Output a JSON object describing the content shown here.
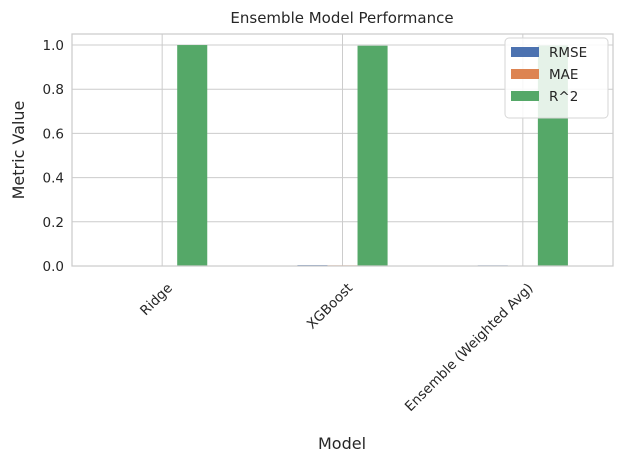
{
  "chart_data": {
    "type": "bar",
    "title": "Ensemble Model Performance",
    "xlabel": "Model",
    "ylabel": "Metric Value",
    "categories": [
      "Ridge",
      "XGBoost",
      "Ensemble (Weighted Avg)"
    ],
    "series": [
      {
        "name": "RMSE",
        "values": [
          0.002,
          0.004,
          0.003
        ],
        "color": "#4c72b0"
      },
      {
        "name": "MAE",
        "values": [
          0.001,
          0.003,
          0.002
        ],
        "color": "#dd8452"
      },
      {
        "name": "R^2",
        "values": [
          1.0,
          0.997,
          0.998
        ],
        "color": "#55a868"
      }
    ],
    "ylim": [
      0,
      1.05
    ],
    "yticks": [
      "0.0",
      "0.2",
      "0.4",
      "0.6",
      "0.8",
      "1.0"
    ],
    "grid": true,
    "legend_position": "top-right",
    "xtick_rotation": 45
  }
}
